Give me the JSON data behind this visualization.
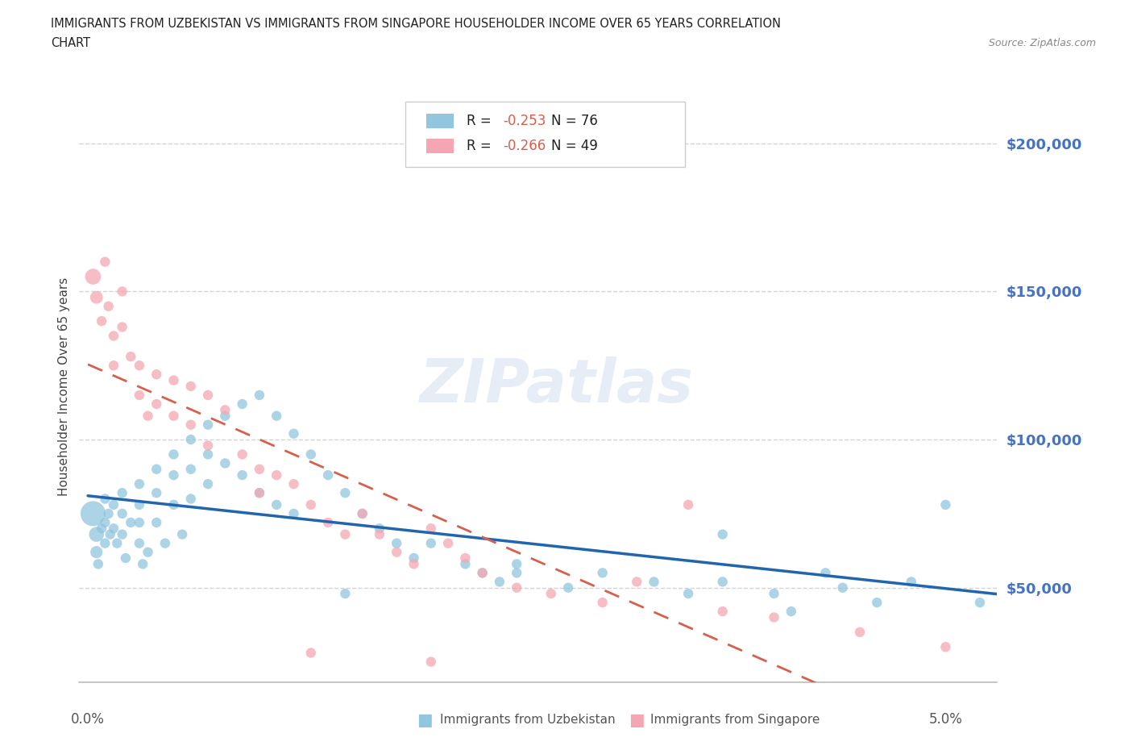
{
  "title_line1": "IMMIGRANTS FROM UZBEKISTAN VS IMMIGRANTS FROM SINGAPORE HOUSEHOLDER INCOME OVER 65 YEARS CORRELATION",
  "title_line2": "CHART",
  "source": "Source: ZipAtlas.com",
  "ylabel": "Householder Income Over 65 years",
  "yticks": [
    50000,
    100000,
    150000,
    200000
  ],
  "ytick_labels": [
    "$50,000",
    "$100,000",
    "$150,000",
    "$200,000"
  ],
  "xlim": [
    -0.0005,
    0.053
  ],
  "ylim": [
    18000,
    218000
  ],
  "color_uzbekistan": "#92c5de",
  "color_singapore": "#f4a7b2",
  "line_color_uzbekistan": "#2166ac",
  "line_color_singapore": "#d6604d",
  "r_uzbekistan": -0.253,
  "n_uzbekistan": 76,
  "r_singapore": -0.266,
  "n_singapore": 49,
  "legend_label_uzbekistan": "Immigrants from Uzbekistan",
  "legend_label_singapore": "Immigrants from Singapore",
  "watermark_text": "ZIPatlas",
  "background_color": "#ffffff",
  "uzbekistan_x": [
    0.0003,
    0.0005,
    0.0005,
    0.0006,
    0.0008,
    0.001,
    0.001,
    0.001,
    0.0012,
    0.0013,
    0.0015,
    0.0015,
    0.0017,
    0.002,
    0.002,
    0.002,
    0.0022,
    0.0025,
    0.003,
    0.003,
    0.003,
    0.003,
    0.0032,
    0.0035,
    0.004,
    0.004,
    0.004,
    0.0045,
    0.005,
    0.005,
    0.005,
    0.0055,
    0.006,
    0.006,
    0.006,
    0.007,
    0.007,
    0.007,
    0.008,
    0.008,
    0.009,
    0.009,
    0.01,
    0.01,
    0.011,
    0.011,
    0.012,
    0.012,
    0.013,
    0.014,
    0.015,
    0.016,
    0.017,
    0.018,
    0.019,
    0.02,
    0.022,
    0.023,
    0.024,
    0.025,
    0.028,
    0.03,
    0.033,
    0.035,
    0.037,
    0.04,
    0.041,
    0.043,
    0.044,
    0.046,
    0.048,
    0.05,
    0.052,
    0.037,
    0.025,
    0.015
  ],
  "uzbekistan_y": [
    75000,
    68000,
    62000,
    58000,
    70000,
    80000,
    72000,
    65000,
    75000,
    68000,
    78000,
    70000,
    65000,
    82000,
    75000,
    68000,
    60000,
    72000,
    85000,
    78000,
    72000,
    65000,
    58000,
    62000,
    90000,
    82000,
    72000,
    65000,
    95000,
    88000,
    78000,
    68000,
    100000,
    90000,
    80000,
    105000,
    95000,
    85000,
    108000,
    92000,
    112000,
    88000,
    115000,
    82000,
    108000,
    78000,
    102000,
    75000,
    95000,
    88000,
    82000,
    75000,
    70000,
    65000,
    60000,
    65000,
    58000,
    55000,
    52000,
    55000,
    50000,
    55000,
    52000,
    48000,
    52000,
    48000,
    42000,
    55000,
    50000,
    45000,
    52000,
    78000,
    45000,
    68000,
    58000,
    48000
  ],
  "singapore_x": [
    0.0003,
    0.0005,
    0.0008,
    0.001,
    0.0012,
    0.0015,
    0.0015,
    0.002,
    0.002,
    0.0025,
    0.003,
    0.003,
    0.0035,
    0.004,
    0.004,
    0.005,
    0.005,
    0.006,
    0.006,
    0.007,
    0.007,
    0.008,
    0.009,
    0.01,
    0.01,
    0.011,
    0.012,
    0.013,
    0.014,
    0.015,
    0.016,
    0.017,
    0.018,
    0.019,
    0.02,
    0.021,
    0.022,
    0.023,
    0.025,
    0.027,
    0.03,
    0.032,
    0.035,
    0.037,
    0.04,
    0.045,
    0.05,
    0.013,
    0.02
  ],
  "singapore_y": [
    155000,
    148000,
    140000,
    160000,
    145000,
    135000,
    125000,
    150000,
    138000,
    128000,
    125000,
    115000,
    108000,
    122000,
    112000,
    120000,
    108000,
    118000,
    105000,
    115000,
    98000,
    110000,
    95000,
    90000,
    82000,
    88000,
    85000,
    78000,
    72000,
    68000,
    75000,
    68000,
    62000,
    58000,
    70000,
    65000,
    60000,
    55000,
    50000,
    48000,
    45000,
    52000,
    78000,
    42000,
    40000,
    35000,
    30000,
    28000,
    25000
  ]
}
